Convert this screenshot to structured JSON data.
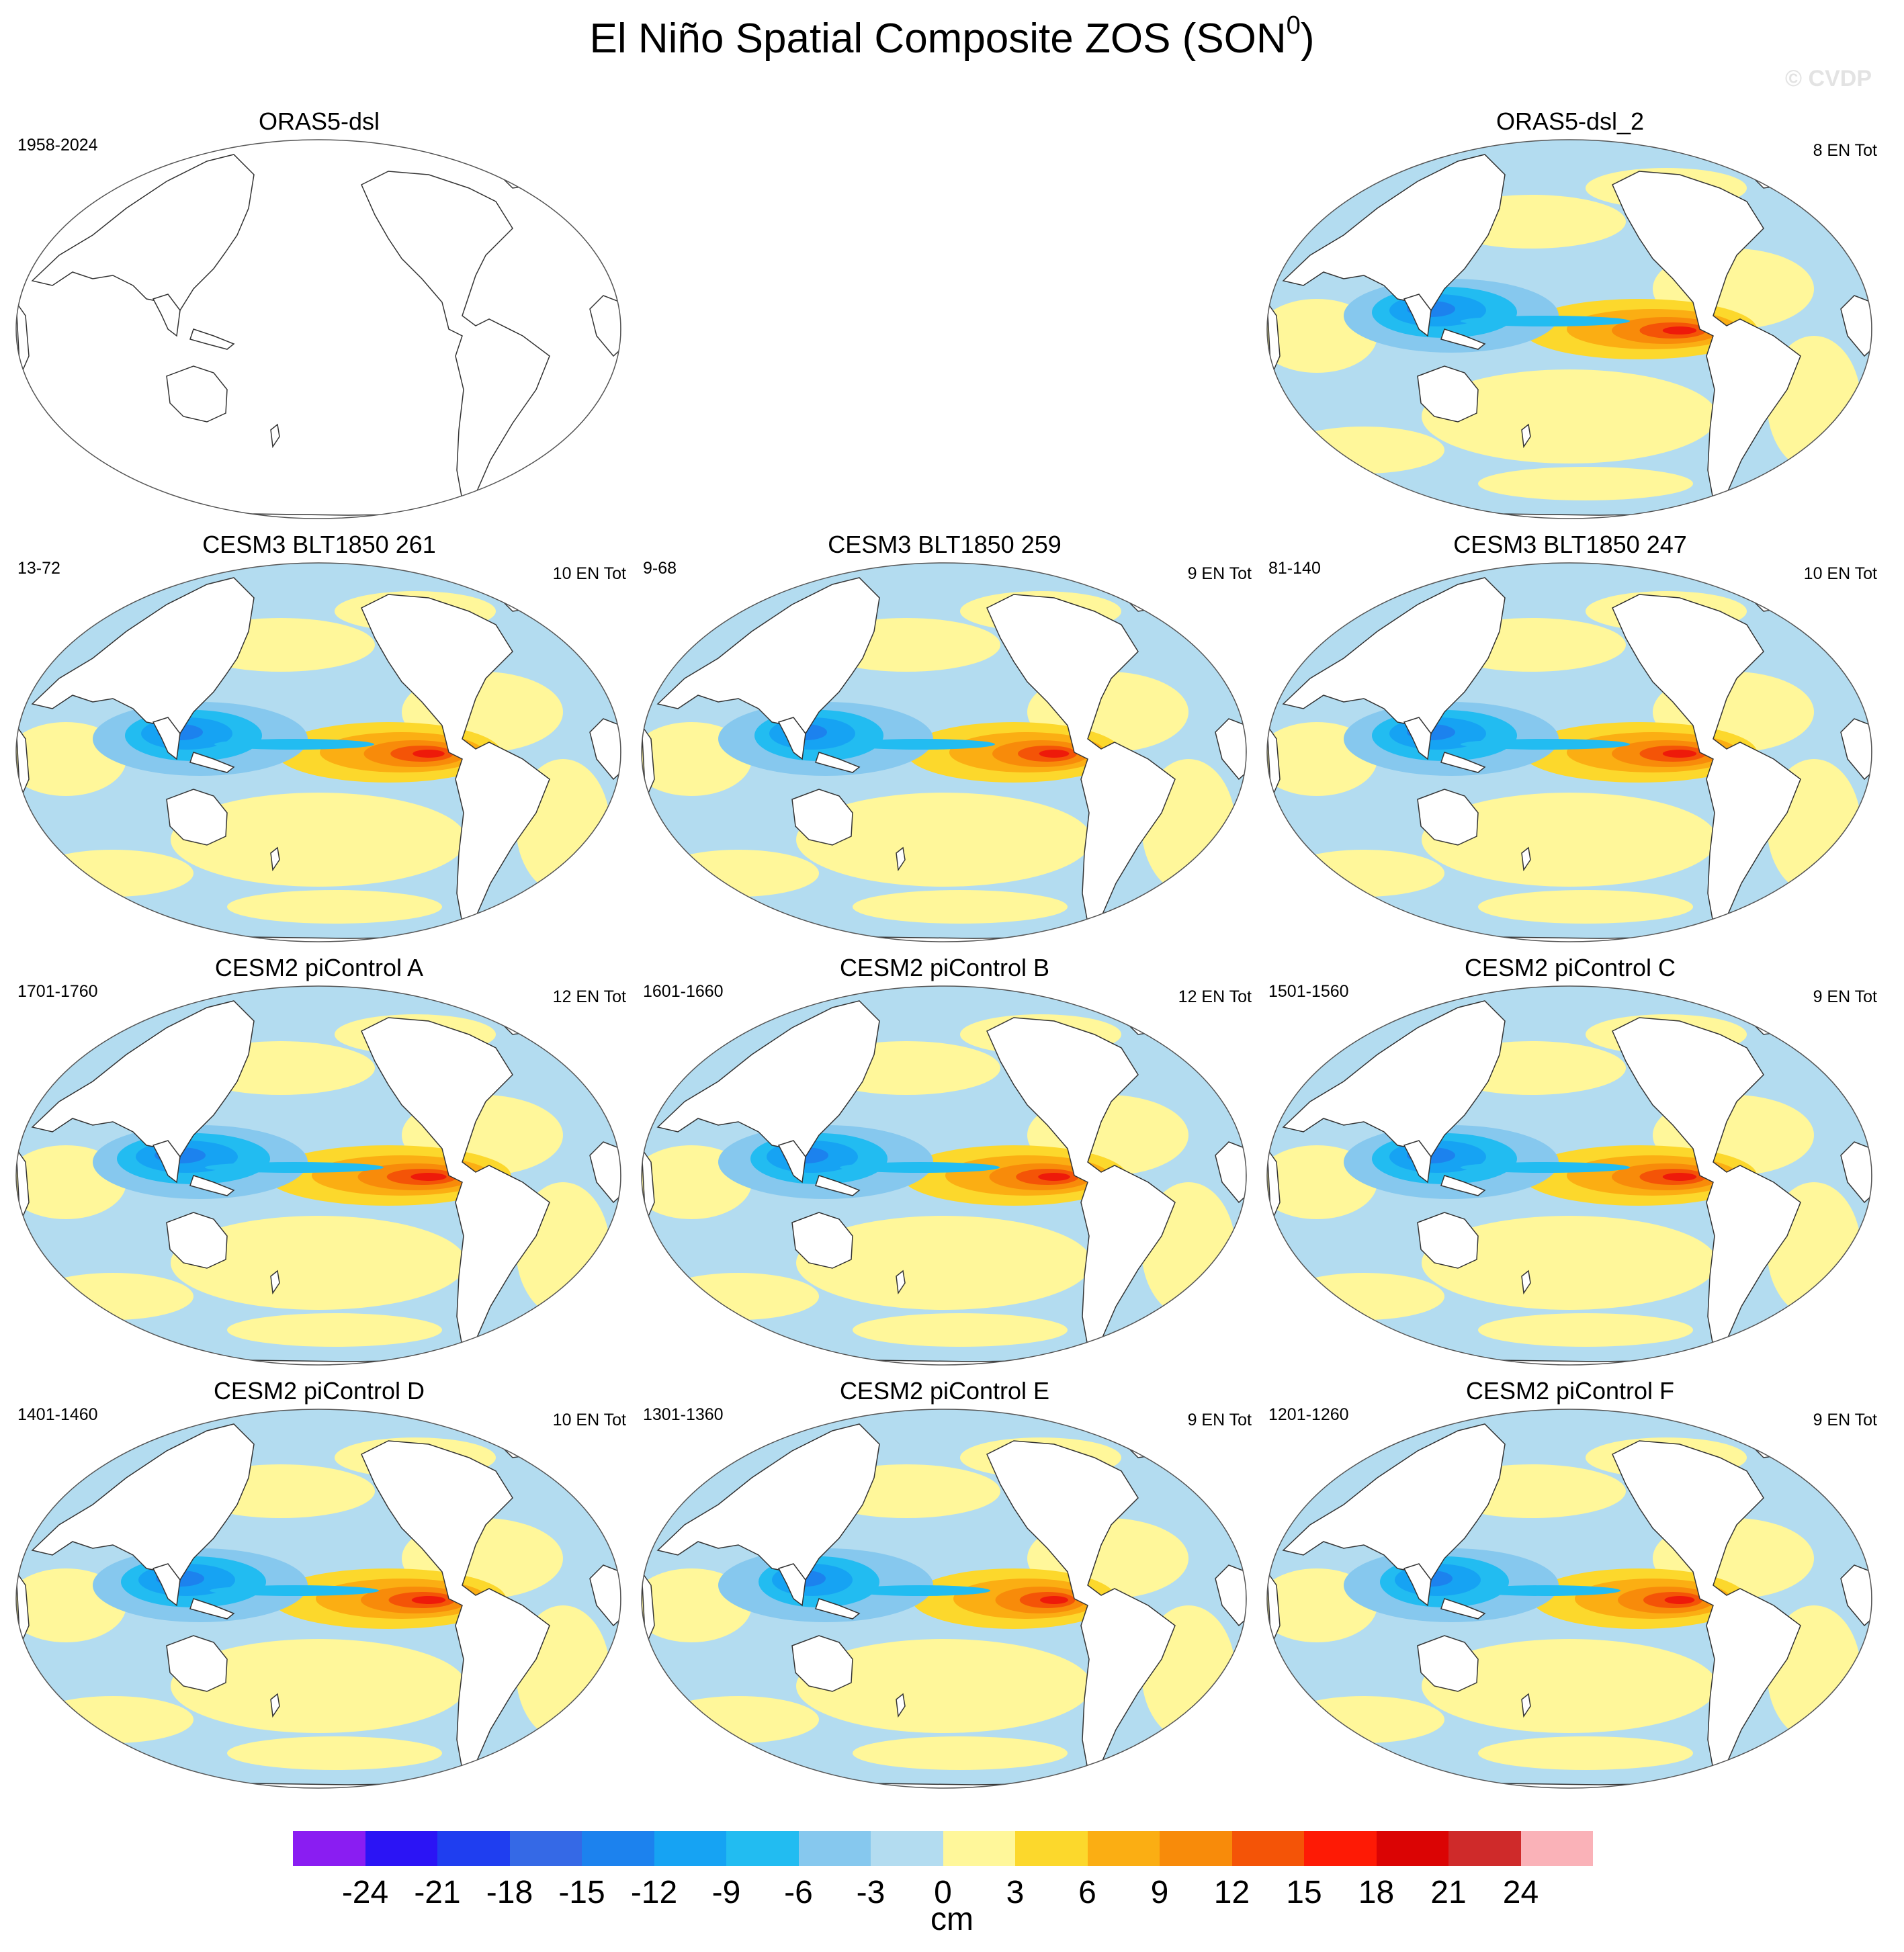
{
  "title": {
    "main": "El Niño Spatial Composite ZOS (SON",
    "sup": "0",
    "close": ")"
  },
  "watermark": "© CVDP",
  "colors": {
    "land": "#ffffff",
    "coast": "#333333",
    "neg3": "#b3dcf0",
    "neg6": "#86c8ee",
    "neg9": "#22bcf1",
    "neg12": "#16a3f3",
    "neg15": "#1c82ee",
    "neg18": "#2f62e6",
    "pos3": "#fff79a",
    "pos6": "#fcd82c",
    "pos9": "#fbae13",
    "pos12": "#f88b0a",
    "pos15": "#f45407",
    "pos18": "#ee1a0a"
  },
  "panels": [
    {
      "title": "ORAS5-dsl",
      "years": "1958-2024",
      "count": "",
      "has_data": false
    },
    {
      "title": "ORAS5-dsl_2",
      "years": "",
      "count": "8 EN Tot",
      "has_data": true,
      "strength": 0.9
    },
    {
      "title": "CESM3 BLT1850 261",
      "years": "13-72",
      "count": "10 EN Tot",
      "has_data": true,
      "strength": 0.85
    },
    {
      "title": "CESM3 BLT1850 259",
      "years": "9-68",
      "count": "9 EN Tot",
      "has_data": true,
      "strength": 0.8
    },
    {
      "title": "CESM3 BLT1850 247",
      "years": "81-140",
      "count": "10 EN Tot",
      "has_data": true,
      "strength": 0.9
    },
    {
      "title": "CESM2 piControl A",
      "years": "1701-1760",
      "count": "12 EN Tot",
      "has_data": true,
      "strength": 0.95
    },
    {
      "title": "CESM2 piControl B",
      "years": "1601-1660",
      "count": "12 EN Tot",
      "has_data": true,
      "strength": 0.85
    },
    {
      "title": "CESM2 piControl C",
      "years": "1501-1560",
      "count": "9 EN Tot",
      "has_data": true,
      "strength": 0.9
    },
    {
      "title": "CESM2 piControl D",
      "years": "1401-1460",
      "count": "10 EN Tot",
      "has_data": true,
      "strength": 0.9
    },
    {
      "title": "CESM2 piControl E",
      "years": "1301-1360",
      "count": "9 EN Tot",
      "has_data": true,
      "strength": 0.75
    },
    {
      "title": "CESM2 piControl F",
      "years": "1201-1260",
      "count": "9 EN Tot",
      "has_data": true,
      "strength": 0.8
    }
  ],
  "colorbar": {
    "colors": [
      "#8a1df2",
      "#2b14f5",
      "#1f3ef0",
      "#3569e6",
      "#1c82ee",
      "#16a3f3",
      "#22bcf1",
      "#86c8ee",
      "#b3dcf0",
      "#fff79a",
      "#fcd82c",
      "#fbae13",
      "#f88b0a",
      "#f45407",
      "#fe1a05",
      "#db0404",
      "#cf2a2a",
      "#fab2b8"
    ],
    "labels": [
      "-24",
      "-21",
      "-18",
      "-15",
      "-12",
      "-9",
      "-6",
      "-3",
      "0",
      "3",
      "6",
      "9",
      "12",
      "15",
      "18",
      "21",
      "24"
    ],
    "units": "cm"
  }
}
